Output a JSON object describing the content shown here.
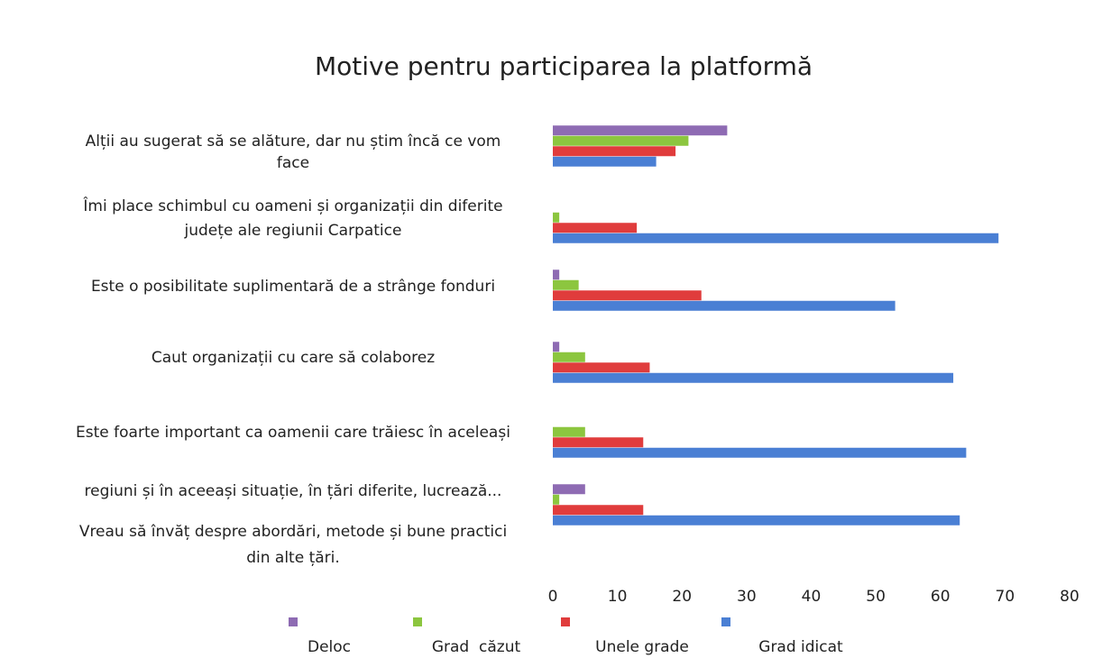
{
  "chart_data": {
    "type": "hbar",
    "title": "Motive pentru participarea la platformă",
    "categories": [
      [
        "Alții au sugerat să se alăture, dar nu știm încă ce vom",
        "face"
      ],
      [
        "Îmi place schimbul cu oameni și organizații din diferite",
        "județe ale regiunii Carpatice"
      ],
      [
        "Este o posibilitate suplimentară de a strânge fonduri"
      ],
      [
        "Caut organizații cu care să colaborez"
      ],
      [
        "Este foarte important ca oamenii care trăiesc în aceleași",
        "regiuni și în aceeași situație, în țări diferite, lucrează..."
      ],
      [
        "Vreau să învăț despre abordări, metode și bune practici",
        "din alte țări."
      ]
    ],
    "series": [
      {
        "name": "Deloc",
        "color": "#8e6bb3",
        "values": [
          27,
          0,
          1,
          1,
          0,
          5
        ]
      },
      {
        "name": "Grad  căzut",
        "color": "#8cc63f",
        "values": [
          21,
          1,
          4,
          5,
          5,
          1
        ]
      },
      {
        "name": "Unele grade",
        "color": "#e03c3c",
        "values": [
          19,
          13,
          23,
          15,
          14,
          14
        ]
      },
      {
        "name": "Grad idicat",
        "color": "#4a7fd4",
        "values": [
          16,
          69,
          53,
          62,
          64,
          63
        ]
      }
    ],
    "xlim": [
      0,
      80
    ],
    "xticks": [
      0,
      10,
      20,
      30,
      40,
      50,
      60,
      70,
      80
    ],
    "grid": false,
    "legend": "bottom"
  }
}
